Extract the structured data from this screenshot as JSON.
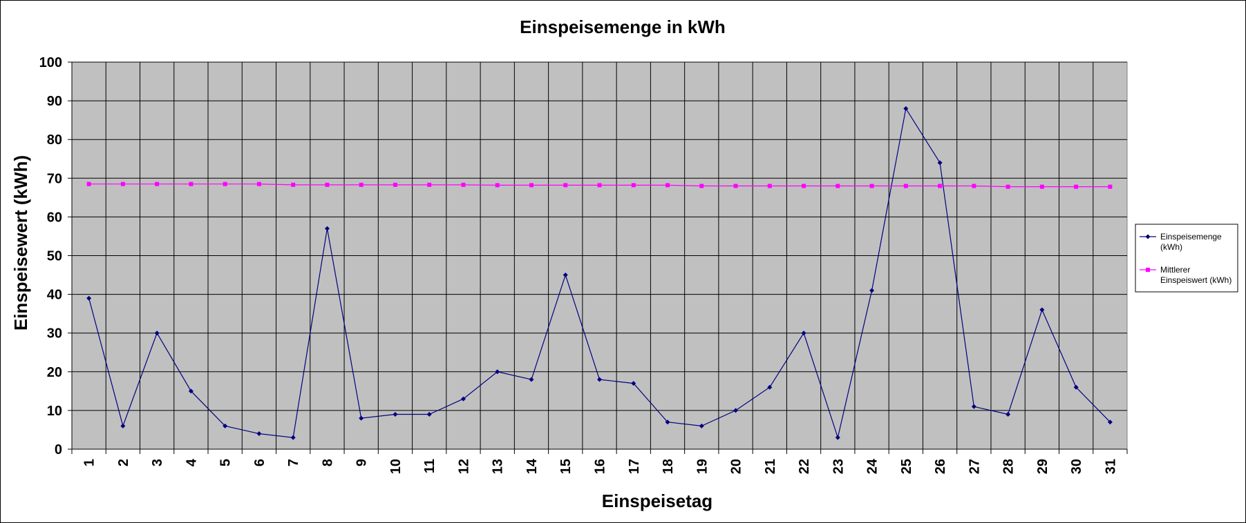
{
  "chart_data": {
    "type": "line",
    "title": "Einspeisemenge in kWh",
    "xlabel": "Einspeisetag",
    "ylabel": "Einspeisewert  (kWh)",
    "categories": [
      "1",
      "2",
      "3",
      "4",
      "5",
      "6",
      "7",
      "8",
      "9",
      "10",
      "11",
      "12",
      "13",
      "14",
      "15",
      "16",
      "17",
      "18",
      "19",
      "20",
      "21",
      "22",
      "23",
      "24",
      "25",
      "26",
      "27",
      "28",
      "29",
      "30",
      "31"
    ],
    "ylim": [
      0,
      100
    ],
    "yticks": [
      0,
      10,
      20,
      30,
      40,
      50,
      60,
      70,
      80,
      90,
      100
    ],
    "grid": true,
    "legend_position": "right",
    "plot_background": "#C0C0C0",
    "series": [
      {
        "legend_lines": [
          "Einspeisemenge",
          "(kWh)"
        ],
        "color": "#000080",
        "marker": "diamond",
        "values": [
          39,
          6,
          30,
          15,
          6,
          4,
          3,
          57,
          8,
          9,
          9,
          13,
          20,
          18,
          45,
          18,
          17,
          7,
          6,
          10,
          16,
          30,
          3,
          41,
          88,
          74,
          11,
          9,
          36,
          16,
          7
        ]
      },
      {
        "legend_lines": [
          "Mittlerer",
          "Einspeiswert (kWh)"
        ],
        "color": "#FF00FF",
        "marker": "square",
        "values": [
          68.5,
          68.5,
          68.5,
          68.5,
          68.5,
          68.5,
          68.3,
          68.3,
          68.3,
          68.3,
          68.3,
          68.3,
          68.2,
          68.2,
          68.2,
          68.2,
          68.2,
          68.2,
          68.0,
          68.0,
          68.0,
          68.0,
          68.0,
          68.0,
          68.0,
          68.0,
          68.0,
          67.8,
          67.8,
          67.8,
          67.8
        ]
      }
    ]
  }
}
